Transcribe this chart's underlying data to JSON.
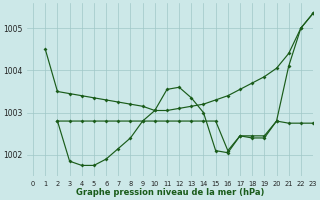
{
  "title": "Graphe pression niveau de la mer (hPa)",
  "bg_color": "#cce8e8",
  "grid_color": "#a0c8c8",
  "line_color": "#1a5c1a",
  "xlim": [
    -0.5,
    23
  ],
  "ylim": [
    1001.5,
    1005.6
  ],
  "yticks": [
    1002,
    1003,
    1004,
    1005
  ],
  "series_a_x": [
    1,
    2,
    3,
    4,
    5,
    6,
    7,
    8,
    9,
    10,
    11,
    12,
    13,
    14,
    15,
    16,
    17,
    18,
    19,
    20,
    21,
    22,
    23
  ],
  "series_a_y": [
    1004.5,
    1003.5,
    1003.45,
    1003.4,
    1003.35,
    1003.3,
    1003.25,
    1003.2,
    1003.15,
    1003.05,
    1003.05,
    1003.1,
    1003.15,
    1003.2,
    1003.3,
    1003.4,
    1003.55,
    1003.7,
    1003.85,
    1004.05,
    1004.4,
    1005.0,
    1005.35
  ],
  "series_b_x": [
    2,
    3,
    4,
    5,
    6,
    7,
    8,
    9,
    10,
    11,
    12,
    13,
    14,
    15,
    16,
    17,
    18,
    19,
    20,
    21,
    22,
    23
  ],
  "series_b_y": [
    1002.8,
    1001.85,
    1001.75,
    1001.75,
    1001.9,
    1002.15,
    1002.4,
    1002.8,
    1003.05,
    1003.55,
    1003.6,
    1003.35,
    1003.0,
    1002.1,
    1002.05,
    1002.45,
    1002.4,
    1002.4,
    1002.8,
    1004.1,
    1005.0,
    1005.35
  ],
  "series_c_x": [
    2,
    3,
    4,
    5,
    6,
    7,
    8,
    9,
    10,
    11,
    12,
    13,
    14,
    15,
    16,
    17,
    18,
    19,
    20,
    21,
    22,
    23
  ],
  "series_c_y": [
    1002.8,
    1002.8,
    1002.8,
    1002.8,
    1002.8,
    1002.8,
    1002.8,
    1002.8,
    1002.8,
    1002.8,
    1002.8,
    1002.8,
    1002.8,
    1002.8,
    1002.1,
    1002.45,
    1002.45,
    1002.45,
    1002.8,
    1002.75,
    1002.75,
    1002.75
  ]
}
